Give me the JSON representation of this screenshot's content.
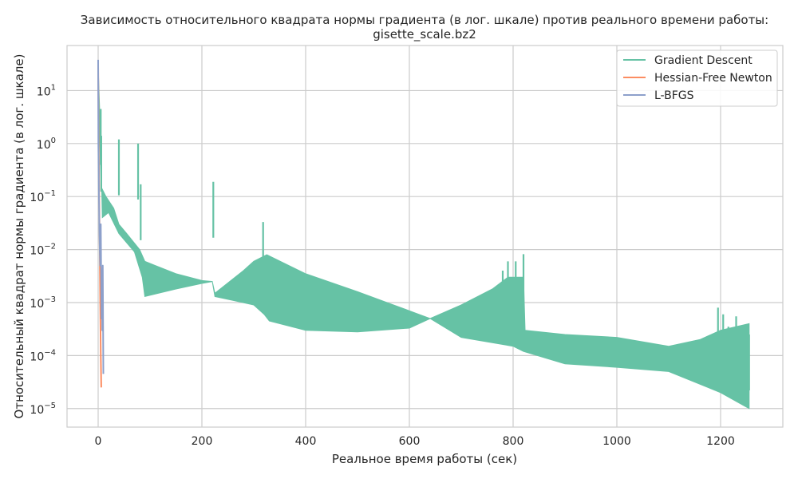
{
  "chart_data": {
    "type": "line",
    "title_line1": "Зависимость относительного квадрата нормы градиента (в лог. шкале) против реального времени работы:",
    "title_line2": "gisette_scale.bz2",
    "xlabel": "Реальное время работы (сек)",
    "ylabel": "Относительный квадрат нормы градиента (в лог. шкале)",
    "xlim": [
      -60,
      1320
    ],
    "ylim_log10": [
      -5.35,
      1.85
    ],
    "yscale": "log",
    "grid": true,
    "legend_position": "top-right",
    "x_ticks": [
      0,
      200,
      400,
      600,
      800,
      1000,
      1200
    ],
    "y_tick_exponents": [
      -5,
      -4,
      -3,
      -2,
      -1,
      0,
      1
    ],
    "y_tick_base": "10",
    "series": [
      {
        "name": "Gradient Descent",
        "color": "#66c2a5",
        "kind": "oscillating-band",
        "top": [
          [
            0,
            30
          ],
          [
            3,
            1.0
          ],
          [
            6,
            0.15
          ],
          [
            15,
            0.1
          ],
          [
            30,
            0.06
          ],
          [
            40,
            0.03
          ],
          [
            55,
            0.02
          ],
          [
            80,
            0.01
          ],
          [
            90,
            0.006
          ],
          [
            110,
            0.005
          ],
          [
            150,
            0.0035
          ],
          [
            200,
            0.0026
          ],
          [
            220,
            0.0025
          ],
          [
            225,
            0.0015
          ],
          [
            280,
            0.004
          ],
          [
            300,
            0.006
          ],
          [
            325,
            0.008
          ],
          [
            400,
            0.0035
          ],
          [
            500,
            0.0016
          ],
          [
            600,
            0.0007
          ],
          [
            640,
            0.0005
          ],
          [
            700,
            0.0009
          ],
          [
            760,
            0.0018
          ],
          [
            790,
            0.003
          ],
          [
            820,
            0.003
          ],
          [
            823,
            0.0003
          ],
          [
            900,
            0.00025
          ],
          [
            1000,
            0.00022
          ],
          [
            1100,
            0.00015
          ],
          [
            1160,
            0.0002
          ],
          [
            1200,
            0.0003
          ],
          [
            1255,
            0.0004
          ]
        ],
        "bottom": [
          [
            0,
            30
          ],
          [
            5,
            1.0
          ],
          [
            8,
            0.04
          ],
          [
            20,
            0.05
          ],
          [
            40,
            0.02
          ],
          [
            70,
            0.009
          ],
          [
            85,
            0.003
          ],
          [
            90,
            0.0013
          ],
          [
            150,
            0.0018
          ],
          [
            200,
            0.0023
          ],
          [
            220,
            0.0025
          ],
          [
            225,
            0.0013
          ],
          [
            260,
            0.0011
          ],
          [
            300,
            0.0009
          ],
          [
            320,
            0.0006
          ],
          [
            330,
            0.00045
          ],
          [
            400,
            0.0003
          ],
          [
            500,
            0.00028
          ],
          [
            600,
            0.00033
          ],
          [
            640,
            0.0005
          ],
          [
            700,
            0.00022
          ],
          [
            800,
            0.00015
          ],
          [
            820,
            0.00012
          ],
          [
            900,
            7e-05
          ],
          [
            1000,
            6e-05
          ],
          [
            1100,
            5e-05
          ],
          [
            1200,
            2e-05
          ],
          [
            1255,
            1e-05
          ]
        ],
        "spikes": [
          [
            5,
            4.5
          ],
          [
            6,
            1.4
          ],
          [
            40,
            1.2
          ],
          [
            77,
            1.0
          ],
          [
            82,
            0.17
          ],
          [
            222,
            0.19
          ],
          [
            318,
            0.033
          ],
          [
            780,
            0.004
          ],
          [
            790,
            0.006
          ],
          [
            805,
            0.006
          ],
          [
            820,
            0.0082
          ],
          [
            1195,
            0.0008
          ],
          [
            1205,
            0.0006
          ],
          [
            1215,
            0.00035
          ],
          [
            1230,
            0.00055
          ],
          [
            1240,
            0.00035
          ],
          [
            1250,
            0.00015
          ],
          [
            1255,
            0.00025
          ]
        ]
      },
      {
        "name": "Hessian-Free Newton",
        "color": "#fc8d62",
        "kind": "line",
        "x": [
          0,
          1,
          2,
          3,
          4,
          5,
          6
        ],
        "y": [
          30,
          1.0,
          0.1,
          0.01,
          0.001,
          0.0001,
          2.5e-05
        ]
      },
      {
        "name": "L-BFGS",
        "color": "#8da0cb",
        "kind": "line",
        "x": [
          0,
          0.5,
          1,
          1.5,
          2,
          2.5,
          3,
          4,
          5,
          6,
          6.5,
          7,
          8,
          9,
          10
        ],
        "y": [
          38,
          1.0,
          0.3,
          0.1,
          0.05,
          0.02,
          0.01,
          0.005,
          0.03,
          0.002,
          0.0005,
          0.004,
          0.0003,
          0.005,
          4.5e-05
        ]
      }
    ]
  }
}
